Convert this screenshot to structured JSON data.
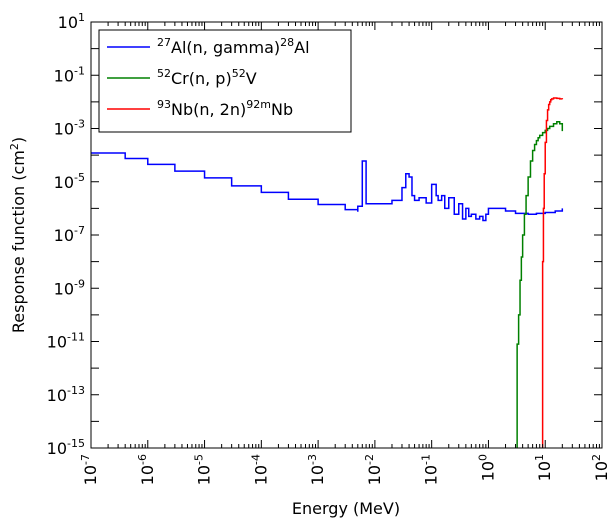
{
  "chart_data": {
    "type": "line",
    "title": "",
    "xlabel": "Energy (MeV)",
    "ylabel": "Response function (cm",
    "ylabel_sup": "2",
    "ylabel_end": ")",
    "xscale": "log",
    "yscale": "log",
    "xlim": [
      1e-07,
      100
    ],
    "ylim": [
      1e-15,
      10
    ],
    "grid": false,
    "legend_position": "top-left",
    "x_ticks": [
      {
        "base": "10",
        "exp": "-7"
      },
      {
        "base": "10",
        "exp": "-6"
      },
      {
        "base": "10",
        "exp": "-5"
      },
      {
        "base": "10",
        "exp": "-4"
      },
      {
        "base": "10",
        "exp": "-3"
      },
      {
        "base": "10",
        "exp": "-2"
      },
      {
        "base": "10",
        "exp": "-1"
      },
      {
        "base": "10",
        "exp": "0"
      },
      {
        "base": "10",
        "exp": "1"
      },
      {
        "base": "10",
        "exp": "2"
      }
    ],
    "y_ticks": [
      {
        "base": "10",
        "exp": "-15"
      },
      {
        "base": "10",
        "exp": "-13"
      },
      {
        "base": "10",
        "exp": "-11"
      },
      {
        "base": "10",
        "exp": "-9"
      },
      {
        "base": "10",
        "exp": "-7"
      },
      {
        "base": "10",
        "exp": "-5"
      },
      {
        "base": "10",
        "exp": "-3"
      },
      {
        "base": "10",
        "exp": "-1"
      },
      {
        "base": "10",
        "exp": "1"
      }
    ],
    "series": [
      {
        "name_parts": {
          "sup1": "27",
          "mid": "Al(n, gamma)",
          "sup2": "28",
          "end": "Al"
        },
        "color": "#0000ff",
        "x": [
          1e-07,
          4e-07,
          4e-07,
          1e-06,
          3e-06,
          1e-05,
          3e-05,
          0.0001,
          0.0003,
          0.001,
          0.003,
          0.005,
          0.005,
          0.006,
          0.006,
          0.007,
          0.007,
          0.01,
          0.02,
          0.03,
          0.035,
          0.04,
          0.045,
          0.05,
          0.06,
          0.08,
          0.1,
          0.12,
          0.13,
          0.15,
          0.17,
          0.2,
          0.25,
          0.3,
          0.35,
          0.4,
          0.45,
          0.5,
          0.6,
          0.7,
          0.8,
          0.9,
          1,
          2,
          3,
          5,
          7,
          10,
          15,
          20
        ],
        "y": [
          0.00012,
          0.00012,
          7.5e-05,
          4.5e-05,
          2.5e-05,
          1.4e-05,
          7e-06,
          4e-06,
          2.2e-06,
          1.4e-06,
          9e-07,
          7.5e-07,
          1.2e-06,
          1.2e-06,
          6e-05,
          6e-05,
          1.5e-06,
          1.5e-06,
          2e-06,
          6e-06,
          2e-05,
          1.5e-05,
          3e-06,
          2e-06,
          2.5e-06,
          1.6e-06,
          8e-06,
          3e-06,
          2e-06,
          3e-06,
          1e-06,
          2.5e-06,
          6e-07,
          1.5e-06,
          4e-07,
          1e-06,
          5e-07,
          6e-07,
          4e-07,
          5e-07,
          3.5e-07,
          6e-07,
          1e-06,
          8e-07,
          6.5e-07,
          6e-07,
          6.5e-07,
          7e-07,
          8e-07,
          1e-06
        ]
      },
      {
        "name_parts": {
          "sup1": "52",
          "mid": "Cr(n, p)",
          "sup2": "52",
          "end": "V"
        },
        "color": "#008000",
        "x": [
          3.2,
          3.2,
          3.4,
          3.6,
          3.8,
          4,
          4.3,
          4.6,
          5,
          5.5,
          6,
          6.5,
          7,
          7.5,
          8,
          9,
          10,
          11,
          12,
          14,
          16,
          18,
          20
        ],
        "y": [
          1e-15,
          8e-12,
          1e-10,
          2e-09,
          1.5e-08,
          1e-07,
          6e-07,
          3e-06,
          1.5e-05,
          6e-05,
          0.00015,
          0.00025,
          0.00035,
          0.00045,
          0.00055,
          0.0007,
          0.00085,
          0.001,
          0.0012,
          0.0015,
          0.0018,
          0.0015,
          0.0008
        ]
      },
      {
        "name_parts": {
          "sup1": "93",
          "mid": "Nb(n, 2n)",
          "sup2": "92m",
          "end": "Nb"
        },
        "color": "#ff0000",
        "x": [
          9,
          9,
          9.3,
          9.6,
          10,
          10.5,
          11,
          11.5,
          12,
          12.5,
          13,
          14,
          15,
          16,
          18,
          20
        ],
        "y": [
          1e-15,
          1e-08,
          1e-06,
          2e-05,
          0.0003,
          0.002,
          0.005,
          0.008,
          0.01,
          0.012,
          0.013,
          0.014,
          0.014,
          0.0135,
          0.013,
          0.0125
        ]
      }
    ]
  }
}
